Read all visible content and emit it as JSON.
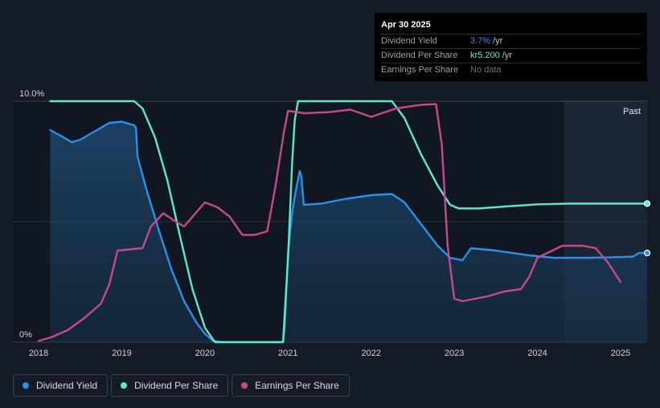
{
  "chart_data": {
    "type": "line",
    "x_range": [
      2017.98,
      2025.32
    ],
    "y_range": [
      0,
      10
    ],
    "y_unit": "%",
    "y_tick_labels": [
      {
        "value": 10,
        "label": "10.0%"
      },
      {
        "value": 0,
        "label": "0%"
      }
    ],
    "x_ticks": [
      {
        "value": 2018,
        "label": "2018"
      },
      {
        "value": 2019,
        "label": "2019"
      },
      {
        "value": 2020,
        "label": "2020"
      },
      {
        "value": 2021,
        "label": "2021"
      },
      {
        "value": 2022,
        "label": "2022"
      },
      {
        "value": 2023,
        "label": "2023"
      },
      {
        "value": 2024,
        "label": "2024"
      },
      {
        "value": 2025,
        "label": "2025"
      }
    ],
    "past_label": "Past",
    "past_start": 2024.32,
    "series": [
      {
        "name": "Dividend Yield",
        "color": "#2d8fe6",
        "area": true,
        "points": [
          [
            2018.14,
            8.8
          ],
          [
            2018.3,
            8.5
          ],
          [
            2018.4,
            8.3
          ],
          [
            2018.5,
            8.4
          ],
          [
            2018.7,
            8.8
          ],
          [
            2018.85,
            9.1
          ],
          [
            2019.0,
            9.15
          ],
          [
            2019.15,
            9.0
          ],
          [
            2019.17,
            8.9
          ],
          [
            2019.19,
            7.7
          ],
          [
            2019.3,
            6.3
          ],
          [
            2019.45,
            4.6
          ],
          [
            2019.6,
            3.0
          ],
          [
            2019.75,
            1.7
          ],
          [
            2019.9,
            0.8
          ],
          [
            2020.0,
            0.35
          ],
          [
            2020.1,
            0.05
          ],
          [
            2020.2,
            0.0
          ],
          [
            2020.94,
            0.0
          ],
          [
            2020.96,
            0.6
          ],
          [
            2021.0,
            3.7
          ],
          [
            2021.05,
            5.4
          ],
          [
            2021.1,
            6.4
          ],
          [
            2021.14,
            7.1
          ],
          [
            2021.16,
            6.9
          ],
          [
            2021.19,
            5.7
          ],
          [
            2021.4,
            5.75
          ],
          [
            2021.7,
            5.95
          ],
          [
            2022.0,
            6.1
          ],
          [
            2022.25,
            6.15
          ],
          [
            2022.4,
            5.8
          ],
          [
            2022.6,
            4.9
          ],
          [
            2022.8,
            4.0
          ],
          [
            2022.95,
            3.5
          ],
          [
            2023.1,
            3.4
          ],
          [
            2023.2,
            3.9
          ],
          [
            2023.5,
            3.8
          ],
          [
            2023.9,
            3.6
          ],
          [
            2024.2,
            3.5
          ],
          [
            2024.6,
            3.5
          ],
          [
            2024.9,
            3.52
          ],
          [
            2025.15,
            3.55
          ],
          [
            2025.22,
            3.7
          ],
          [
            2025.32,
            3.7
          ]
        ]
      },
      {
        "name": "Dividend Per Share",
        "color": "#5ee8c8",
        "area": false,
        "points": [
          [
            2018.14,
            10.0
          ],
          [
            2019.15,
            10.0
          ],
          [
            2019.25,
            9.7
          ],
          [
            2019.4,
            8.5
          ],
          [
            2019.55,
            6.7
          ],
          [
            2019.7,
            4.4
          ],
          [
            2019.85,
            2.2
          ],
          [
            2020.0,
            0.6
          ],
          [
            2020.12,
            0.0
          ],
          [
            2020.94,
            0.0
          ],
          [
            2021.0,
            3.5
          ],
          [
            2021.05,
            7.5
          ],
          [
            2021.08,
            9.2
          ],
          [
            2021.12,
            10.0
          ],
          [
            2022.25,
            10.0
          ],
          [
            2022.4,
            9.3
          ],
          [
            2022.6,
            7.8
          ],
          [
            2022.8,
            6.5
          ],
          [
            2022.95,
            5.7
          ],
          [
            2023.05,
            5.55
          ],
          [
            2023.3,
            5.55
          ],
          [
            2023.7,
            5.65
          ],
          [
            2024.0,
            5.72
          ],
          [
            2024.4,
            5.75
          ],
          [
            2025.32,
            5.75
          ]
        ]
      },
      {
        "name": "Earnings Per Share",
        "color": "#c7488c",
        "area": false,
        "points": [
          [
            2018.0,
            0.05
          ],
          [
            2018.15,
            0.2
          ],
          [
            2018.35,
            0.5
          ],
          [
            2018.55,
            1.0
          ],
          [
            2018.75,
            1.6
          ],
          [
            2018.85,
            2.4
          ],
          [
            2018.95,
            3.8
          ],
          [
            2019.1,
            3.85
          ],
          [
            2019.25,
            3.9
          ],
          [
            2019.35,
            4.8
          ],
          [
            2019.5,
            5.35
          ],
          [
            2019.65,
            5.0
          ],
          [
            2019.75,
            4.8
          ],
          [
            2019.9,
            5.4
          ],
          [
            2020.0,
            5.8
          ],
          [
            2020.15,
            5.6
          ],
          [
            2020.3,
            5.2
          ],
          [
            2020.45,
            4.45
          ],
          [
            2020.6,
            4.45
          ],
          [
            2020.75,
            4.6
          ],
          [
            2020.85,
            6.5
          ],
          [
            2020.95,
            8.7
          ],
          [
            2021.0,
            9.6
          ],
          [
            2021.2,
            9.5
          ],
          [
            2021.5,
            9.55
          ],
          [
            2021.75,
            9.65
          ],
          [
            2022.0,
            9.35
          ],
          [
            2022.3,
            9.7
          ],
          [
            2022.6,
            9.85
          ],
          [
            2022.78,
            9.88
          ],
          [
            2022.85,
            8.2
          ],
          [
            2022.92,
            4.0
          ],
          [
            2023.0,
            1.8
          ],
          [
            2023.1,
            1.7
          ],
          [
            2023.4,
            1.9
          ],
          [
            2023.6,
            2.1
          ],
          [
            2023.8,
            2.2
          ],
          [
            2023.9,
            2.7
          ],
          [
            2024.0,
            3.5
          ],
          [
            2024.3,
            4.0
          ],
          [
            2024.55,
            4.0
          ],
          [
            2024.7,
            3.9
          ],
          [
            2024.85,
            3.3
          ],
          [
            2025.0,
            2.5
          ]
        ]
      }
    ]
  },
  "tooltip": {
    "date": "Apr 30 2025",
    "rows": [
      {
        "label": "Dividend Yield",
        "value": "3.7%",
        "unit": "/yr",
        "color": "#2d8fe6"
      },
      {
        "label": "Dividend Per Share",
        "value": "kr5.200",
        "unit": "/yr",
        "color": "#5ee8c8"
      },
      {
        "label": "Earnings Per Share",
        "no_data": "No data"
      }
    ]
  },
  "legend": [
    {
      "label": "Dividend Yield",
      "color": "#2d8fe6"
    },
    {
      "label": "Dividend Per Share",
      "color": "#5ee8c8"
    },
    {
      "label": "Earnings Per Share",
      "color": "#c7488c"
    }
  ]
}
